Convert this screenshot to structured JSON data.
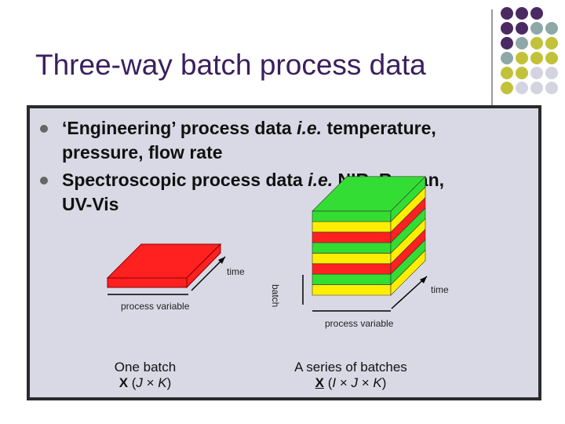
{
  "slide": {
    "title": "Three-way batch process data",
    "bullets": [
      {
        "line1": "‘Engineering’ process data ",
        "italic1": "i.e.",
        "line1b": " temperature,",
        "line2": "pressure, flow rate"
      },
      {
        "line1": "Spectroscopic process data ",
        "italic1": "i.e.",
        "line1b": " NIR, Raman,",
        "line2": "UV-Vis"
      }
    ],
    "left_figure": {
      "time_label": "time",
      "variable_label": "process variable",
      "caption_line1": "One batch",
      "caption_X": "X",
      "caption_dims": " (",
      "caption_J": "J",
      "caption_times": " × ",
      "caption_K": "K",
      "caption_close": ")"
    },
    "right_figure": {
      "batch_label": "batch",
      "time_label": "time",
      "variable_label": "process variable",
      "caption_line1": "A series of batches",
      "caption_X": "X",
      "caption_open": " (",
      "caption_I": "I",
      "caption_times1": " × ",
      "caption_J": "J",
      "caption_times2": " × ",
      "caption_K": "K",
      "caption_close": ")"
    }
  },
  "colors": {
    "title": "#3b1f5e",
    "panel": "#d9d9e6",
    "red": "#ff2020",
    "green": "#33dd33",
    "yellow": "#ffee00",
    "dot_purple": "#4b2a63",
    "dot_teal": "#8ea7a7",
    "dot_olive": "#c2c23a",
    "dot_light": "#d4d4e0"
  },
  "decor": {
    "dot_grid_icon": "decorative-dot-grid"
  }
}
